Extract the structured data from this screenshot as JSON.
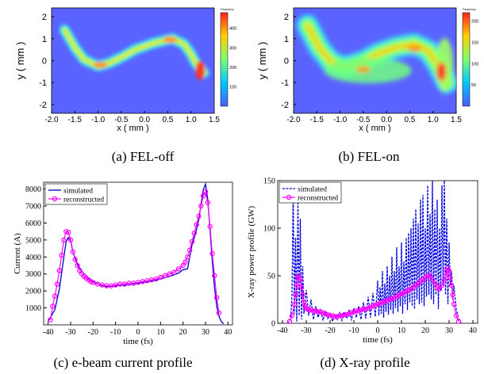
{
  "captions": {
    "a": "(a)  FEL-off",
    "b": "(b)  FEL-on",
    "c": "(c)  e-beam current profile",
    "d": "(d)  X-ray profile"
  },
  "colorbar_label": "Frequency",
  "chart_data": [
    {
      "type": "heatmap",
      "id": "a",
      "xlabel": "x  ( mm )",
      "ylabel": "y  ( mm )",
      "xlim": [
        -2.0,
        1.5
      ],
      "ylim": [
        -2.4,
        2.4
      ],
      "xticks": [
        "-2.0",
        "-1.5",
        "-1.0",
        "-0.5",
        "0.0",
        "0.5",
        "1.0",
        "1.5"
      ],
      "yticks": [
        "2",
        "1",
        "0",
        "-1",
        "-2"
      ],
      "colorbar": {
        "range": [
          0,
          480
        ],
        "ticks": [
          "400",
          "300",
          "200",
          "100"
        ]
      },
      "ridge": [
        [
          -1.72,
          1.4
        ],
        [
          -1.5,
          0.6
        ],
        [
          -1.3,
          0.05
        ],
        [
          -1.0,
          -0.25
        ],
        [
          -0.75,
          -0.1
        ],
        [
          -0.5,
          0.15
        ],
        [
          -0.2,
          0.5
        ],
        [
          0.2,
          0.8
        ],
        [
          0.6,
          1.0
        ],
        [
          0.85,
          0.75
        ],
        [
          1.0,
          0.3
        ],
        [
          1.1,
          -0.1
        ],
        [
          1.2,
          -0.35
        ],
        [
          1.28,
          -0.55
        ]
      ],
      "hotspots": [
        [
          1.2,
          -0.45
        ],
        [
          0.55,
          0.95
        ],
        [
          -0.95,
          -0.2
        ]
      ]
    },
    {
      "type": "heatmap",
      "id": "b",
      "xlabel": "x  ( mm )",
      "ylabel": "y  ( mm )",
      "xlim": [
        -2.0,
        1.5
      ],
      "ylim": [
        -2.4,
        2.4
      ],
      "xticks": [
        "-2.0",
        "-1.5",
        "-1.0",
        "-0.5",
        "0.0",
        "0.5",
        "1.0",
        "1.5"
      ],
      "yticks": [
        "2",
        "1",
        "0",
        "-1",
        "-2"
      ],
      "colorbar": {
        "range": [
          0,
          220
        ],
        "ticks": [
          "200",
          "150",
          "100",
          "50"
        ]
      },
      "ridge": [
        [
          -1.7,
          1.6
        ],
        [
          -1.45,
          0.6
        ],
        [
          -1.2,
          -0.05
        ],
        [
          -0.9,
          -0.3
        ],
        [
          -0.5,
          -0.05
        ],
        [
          -0.2,
          0.3
        ],
        [
          0.2,
          0.6
        ],
        [
          0.6,
          0.75
        ],
        [
          0.9,
          0.45
        ],
        [
          1.1,
          -0.2
        ],
        [
          1.2,
          -0.6
        ],
        [
          1.3,
          -1.0
        ]
      ],
      "hotspots": [
        [
          1.18,
          -0.5
        ],
        [
          -0.5,
          -0.4
        ],
        [
          0.6,
          0.55
        ]
      ]
    },
    {
      "type": "line",
      "id": "c",
      "xlabel": "time (fs)",
      "ylabel": "Current (A)",
      "xlim": [
        -42,
        42
      ],
      "ylim": [
        0,
        8400
      ],
      "xticks": [
        -40,
        -30,
        -20,
        -10,
        0,
        10,
        20,
        30,
        40
      ],
      "yticks": [
        1000,
        2000,
        3000,
        4000,
        5000,
        6000,
        7000,
        8000
      ],
      "legend": "top-left",
      "series": [
        {
          "name": "simulated",
          "style": "solid",
          "color": "#0000c8",
          "x": [
            -40,
            -37,
            -35,
            -33,
            -32,
            -31,
            -30,
            -29,
            -27,
            -25,
            -22,
            -20,
            -17,
            -14,
            -10,
            -5,
            0,
            5,
            10,
            15,
            18,
            20,
            22,
            24,
            26,
            27,
            28,
            29,
            30,
            31,
            32,
            33,
            34,
            35,
            36,
            37,
            38
          ],
          "y": [
            200,
            900,
            2100,
            4000,
            4900,
            5150,
            4950,
            4300,
            3600,
            3150,
            2750,
            2550,
            2350,
            2250,
            2300,
            2350,
            2450,
            2550,
            2700,
            2900,
            3050,
            3250,
            3300,
            4700,
            5600,
            6200,
            7100,
            7950,
            8300,
            7400,
            5600,
            3800,
            2200,
            1100,
            500,
            200,
            60
          ]
        },
        {
          "name": "reconstructed",
          "style": "markers",
          "color": "#ff00ff",
          "x": [
            -39,
            -38,
            -37,
            -36,
            -35,
            -34,
            -33,
            -32,
            -31,
            -30,
            -29,
            -28,
            -27,
            -26,
            -25,
            -24,
            -23,
            -22,
            -21,
            -20,
            -18,
            -16,
            -14,
            -12,
            -10,
            -8,
            -6,
            -4,
            -2,
            0,
            2,
            4,
            6,
            8,
            10,
            12,
            14,
            16,
            18,
            20,
            21,
            22,
            23,
            24,
            25,
            26,
            27,
            28,
            29,
            30,
            31,
            32,
            33,
            34,
            35,
            36
          ],
          "y": [
            300,
            1100,
            1700,
            2400,
            3200,
            4100,
            5000,
            5500,
            5450,
            5000,
            4300,
            3850,
            3500,
            3200,
            3000,
            2850,
            2750,
            2650,
            2550,
            2500,
            2400,
            2350,
            2300,
            2300,
            2350,
            2400,
            2400,
            2450,
            2450,
            2500,
            2550,
            2600,
            2650,
            2700,
            2800,
            2900,
            3000,
            3100,
            3300,
            3500,
            3700,
            4000,
            4400,
            4900,
            5400,
            5900,
            6400,
            7000,
            7600,
            7850,
            7200,
            5800,
            4200,
            2900,
            1600,
            700
          ]
        }
      ]
    },
    {
      "type": "line",
      "id": "d",
      "xlabel": "time (fs)",
      "ylabel": "X-ray power profile (GW)",
      "xlim": [
        -42,
        42
      ],
      "ylim": [
        0,
        150
      ],
      "xticks": [
        -40,
        -30,
        -20,
        -10,
        0,
        10,
        20,
        30,
        40
      ],
      "yticks": [
        0,
        50,
        100,
        150
      ],
      "legend": "top-left",
      "series": [
        {
          "name": "simulated",
          "style": "dashed",
          "color": "#0000e0",
          "x": [
            -38,
            -37,
            -36.5,
            -36,
            -35.5,
            -35,
            -34.5,
            -34,
            -33.5,
            -33,
            -32.5,
            -32,
            -31.5,
            -31,
            -30,
            -29,
            -28,
            -27,
            -26,
            -25,
            -24,
            -23,
            -22,
            -21,
            -20,
            -19,
            -18,
            -17,
            -16,
            -15,
            -14,
            -13,
            -12,
            -11,
            -10,
            -9,
            -8,
            -7,
            -6,
            -5,
            -4,
            -3,
            -2,
            -1,
            0,
            0.5,
            1,
            1.5,
            2,
            2.5,
            3,
            3.5,
            4,
            4.5,
            5,
            5.5,
            6,
            6.5,
            7,
            7.5,
            8,
            8.5,
            9,
            9.5,
            10,
            10.5,
            11,
            11.5,
            12,
            12.5,
            13,
            13.5,
            14,
            14.5,
            15,
            15.5,
            16,
            16.5,
            17,
            17.5,
            18,
            18.5,
            19,
            19.5,
            20,
            20.5,
            21,
            21.5,
            22,
            22.5,
            23,
            23.5,
            24,
            24.5,
            25,
            25.5,
            26,
            26.5,
            27,
            27.5,
            28,
            28.5,
            29,
            29.5,
            30,
            30.5,
            31,
            31.5,
            32,
            33,
            34,
            35
          ],
          "y": [
            0,
            2,
            6,
            30,
            140,
            10,
            90,
            2,
            130,
            8,
            110,
            4,
            60,
            10,
            35,
            8,
            25,
            4,
            18,
            6,
            15,
            3,
            12,
            5,
            10,
            2,
            9,
            4,
            11,
            3,
            12,
            5,
            14,
            3,
            16,
            6,
            18,
            4,
            22,
            5,
            28,
            6,
            32,
            7,
            45,
            8,
            38,
            10,
            55,
            6,
            42,
            12,
            60,
            9,
            50,
            14,
            70,
            10,
            55,
            16,
            80,
            12,
            60,
            18,
            85,
            10,
            65,
            20,
            90,
            14,
            95,
            22,
            100,
            18,
            110,
            15,
            120,
            25,
            105,
            20,
            130,
            22,
            135,
            18,
            100,
            28,
            145,
            30,
            115,
            25,
            150,
            20,
            120,
            30,
            130,
            15,
            100,
            35,
            145,
            40,
            150,
            30,
            110,
            20,
            85,
            40,
            55,
            25,
            40,
            15,
            5,
            0
          ]
        },
        {
          "name": "reconstructed",
          "style": "markers",
          "color": "#ff00ff",
          "x": [
            -37,
            -36,
            -35,
            -34.5,
            -34,
            -33.5,
            -33,
            -32.5,
            -32,
            -31.5,
            -31,
            -30.5,
            -30,
            -29.5,
            -29,
            -28,
            -27,
            -26,
            -25,
            -24,
            -23,
            -22,
            -21,
            -20,
            -19,
            -18,
            -17,
            -16,
            -15,
            -14,
            -13,
            -12,
            -11,
            -10,
            -9,
            -8,
            -7,
            -6,
            -5,
            -4,
            -3,
            -2,
            -1,
            0,
            1,
            2,
            3,
            4,
            5,
            6,
            7,
            8,
            9,
            10,
            11,
            12,
            13,
            14,
            15,
            16,
            17,
            18,
            19,
            20,
            21,
            22,
            23,
            24,
            25,
            26,
            27,
            28,
            28.5,
            29,
            29.5,
            30,
            30.5,
            31,
            31.5,
            32,
            33,
            34
          ],
          "y": [
            2,
            8,
            20,
            30,
            40,
            48,
            50,
            46,
            38,
            30,
            22,
            18,
            16,
            15,
            14,
            14,
            13,
            13,
            12,
            12,
            11,
            10,
            9,
            8,
            8,
            7,
            7,
            8,
            8,
            9,
            9,
            10,
            11,
            12,
            13,
            13,
            14,
            15,
            15,
            16,
            17,
            18,
            19,
            20,
            21,
            22,
            23,
            24,
            25,
            26,
            27,
            28,
            30,
            31,
            32,
            33,
            35,
            36,
            38,
            40,
            42,
            44,
            46,
            48,
            50,
            50,
            46,
            42,
            38,
            36,
            40,
            45,
            50,
            55,
            58,
            55,
            48,
            40,
            30,
            20,
            8,
            2
          ]
        }
      ]
    }
  ]
}
